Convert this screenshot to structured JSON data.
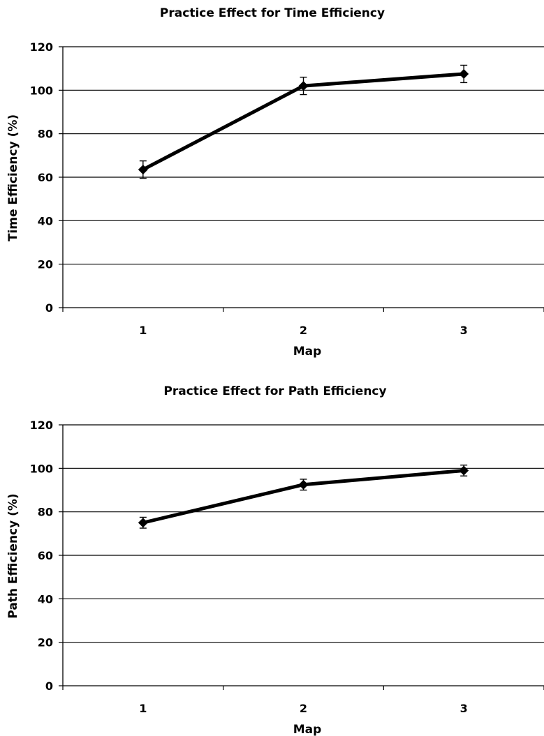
{
  "chart_data": [
    {
      "type": "line",
      "title": "Practice Effect for Time Efficiency",
      "xlabel": "Map",
      "ylabel": "Time Efficiency (%)",
      "categories": [
        "1",
        "2",
        "3"
      ],
      "values": [
        63.5,
        102,
        107.5
      ],
      "error": [
        4,
        4,
        4
      ],
      "ylim": [
        0,
        120
      ],
      "yticks": [
        0,
        20,
        40,
        60,
        80,
        100,
        120
      ],
      "grid": true,
      "legend": "none"
    },
    {
      "type": "line",
      "title": "Practice Effect for Path Efficiency",
      "xlabel": "Map",
      "ylabel": "Path Efficiency (%)",
      "categories": [
        "1",
        "2",
        "3"
      ],
      "values": [
        75,
        92.5,
        99
      ],
      "error": [
        2.5,
        2.5,
        2.5
      ],
      "ylim": [
        0,
        120
      ],
      "yticks": [
        0,
        20,
        40,
        60,
        80,
        100,
        120
      ],
      "grid": true,
      "legend": "none"
    }
  ]
}
